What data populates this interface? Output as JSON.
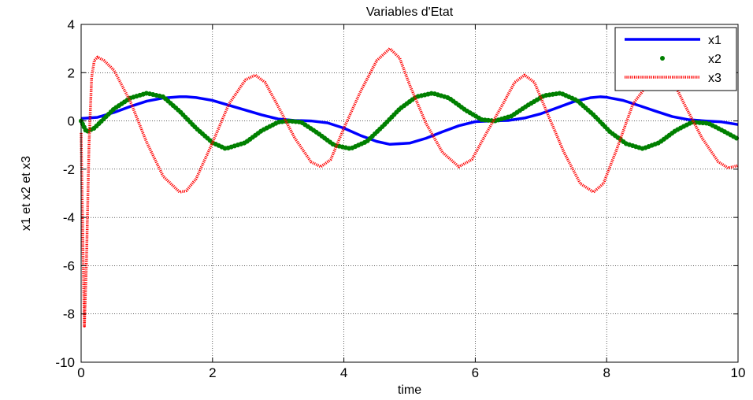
{
  "chart_data": {
    "type": "line",
    "title": "Variables d'Etat",
    "xlabel": "time",
    "ylabel": "x1 et x2 et x3",
    "xlim": [
      0,
      10
    ],
    "ylim": [
      -10,
      4
    ],
    "xticks": [
      0,
      2,
      4,
      6,
      8,
      10
    ],
    "yticks": [
      -10,
      -8,
      -6,
      -4,
      -2,
      0,
      2,
      4
    ],
    "xtick_labels": [
      "0",
      "2",
      "4",
      "6",
      "8",
      "10"
    ],
    "ytick_labels": [
      "-10",
      "-8",
      "-6",
      "-4",
      "-2",
      "0",
      "2",
      "4"
    ],
    "grid": true,
    "legend_position": "top-right",
    "series": [
      {
        "name": "x1",
        "color": "#0000ff",
        "style": "solid",
        "x": [
          0,
          0.25,
          0.5,
          0.75,
          1.0,
          1.25,
          1.5,
          1.6,
          1.75,
          2.0,
          2.25,
          2.5,
          2.75,
          3.0,
          3.25,
          3.5,
          3.75,
          4.0,
          4.25,
          4.5,
          4.7,
          5.0,
          5.25,
          5.5,
          5.75,
          6.0,
          6.25,
          6.5,
          6.75,
          7.0,
          7.25,
          7.5,
          7.75,
          7.9,
          8.0,
          8.25,
          8.5,
          8.75,
          9.0,
          9.25,
          9.5,
          9.75,
          10.0
        ],
        "values": [
          0.1,
          0.15,
          0.35,
          0.6,
          0.82,
          0.95,
          1.0,
          1.0,
          0.97,
          0.85,
          0.65,
          0.45,
          0.25,
          0.08,
          0.02,
          0.0,
          -0.08,
          -0.3,
          -0.6,
          -0.85,
          -0.97,
          -0.92,
          -0.72,
          -0.45,
          -0.2,
          -0.03,
          0.0,
          0.02,
          0.12,
          0.3,
          0.55,
          0.8,
          0.96,
          1.0,
          0.98,
          0.85,
          0.63,
          0.4,
          0.18,
          0.05,
          0.0,
          -0.04,
          -0.15
        ]
      },
      {
        "name": "x2",
        "color": "#008000",
        "style": "dotted",
        "x": [
          0,
          0.08,
          0.2,
          0.35,
          0.5,
          0.75,
          1.0,
          1.25,
          1.5,
          1.75,
          2.0,
          2.2,
          2.5,
          2.75,
          3.0,
          3.15,
          3.35,
          3.6,
          3.85,
          4.1,
          4.35,
          4.6,
          4.85,
          5.1,
          5.35,
          5.6,
          5.85,
          6.1,
          6.3,
          6.55,
          6.8,
          7.05,
          7.3,
          7.55,
          7.8,
          8.05,
          8.3,
          8.55,
          8.8,
          9.05,
          9.3,
          9.55,
          9.8,
          10.0
        ],
        "values": [
          0.0,
          -0.45,
          -0.3,
          0.1,
          0.5,
          0.95,
          1.15,
          1.0,
          0.4,
          -0.3,
          -0.9,
          -1.15,
          -0.9,
          -0.4,
          -0.05,
          0.0,
          -0.05,
          -0.5,
          -1.0,
          -1.15,
          -0.85,
          -0.2,
          0.5,
          1.0,
          1.15,
          0.95,
          0.45,
          0.05,
          0.0,
          0.2,
          0.65,
          1.05,
          1.15,
          0.85,
          0.25,
          -0.45,
          -0.95,
          -1.15,
          -0.9,
          -0.4,
          -0.05,
          -0.1,
          -0.45,
          -0.75
        ]
      },
      {
        "name": "x3",
        "color": "#ff0000",
        "style": "dashdot",
        "x": [
          0,
          0.02,
          0.05,
          0.08,
          0.12,
          0.16,
          0.2,
          0.25,
          0.35,
          0.5,
          0.75,
          1.0,
          1.25,
          1.5,
          1.6,
          1.75,
          2.0,
          2.25,
          2.5,
          2.65,
          2.8,
          3.0,
          3.25,
          3.5,
          3.65,
          3.8,
          4.0,
          4.25,
          4.5,
          4.7,
          4.85,
          5.0,
          5.25,
          5.5,
          5.75,
          5.95,
          6.15,
          6.4,
          6.6,
          6.75,
          6.9,
          7.1,
          7.35,
          7.6,
          7.8,
          7.95,
          8.15,
          8.4,
          8.65,
          8.85,
          9.0,
          9.2,
          9.45,
          9.7,
          9.85,
          10.0
        ],
        "values": [
          -0.5,
          -4.0,
          -8.5,
          -6.0,
          -1.0,
          1.8,
          2.5,
          2.65,
          2.5,
          2.1,
          0.8,
          -0.9,
          -2.3,
          -2.95,
          -2.9,
          -2.4,
          -0.9,
          0.7,
          1.7,
          1.9,
          1.6,
          0.6,
          -0.7,
          -1.7,
          -1.9,
          -1.6,
          -0.3,
          1.2,
          2.5,
          3.0,
          2.6,
          1.5,
          -0.1,
          -1.3,
          -1.9,
          -1.6,
          -0.6,
          0.6,
          1.6,
          1.9,
          1.6,
          0.3,
          -1.3,
          -2.6,
          -2.95,
          -2.6,
          -1.2,
          0.7,
          1.6,
          1.95,
          1.7,
          0.6,
          -0.7,
          -1.7,
          -1.95,
          -1.85
        ]
      }
    ]
  }
}
